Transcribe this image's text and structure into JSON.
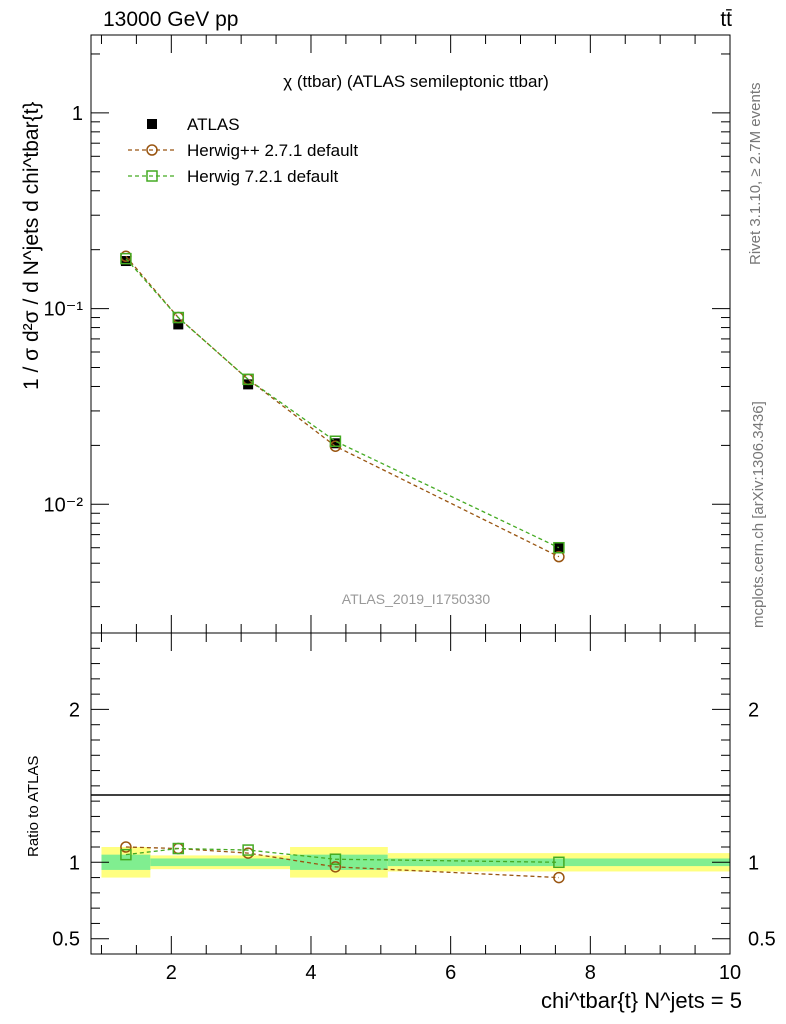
{
  "header": {
    "energy_label": "13000 GeV pp",
    "process_label": "tt̄"
  },
  "side_labels": {
    "rivet": "Rivet 3.1.10, ≥ 2.7M events",
    "mcplots": "mcplots.cern.ch [arXiv:1306.3436]"
  },
  "chart_data": [
    {
      "type": "line",
      "title": "χ (ttbar) (ATLAS semileptonic ttbar)",
      "watermark": "ATLAS_2019_I1750330",
      "ylabel": "1 / σ d²σ / d N^jets d chi^tbar{t}",
      "yscale": "log",
      "ylim": [
        0.0022,
        2.5
      ],
      "yticks": [
        {
          "value": 1,
          "label": "1"
        },
        {
          "value": 0.1,
          "label": "10⁻¹"
        },
        {
          "value": 0.01,
          "label": "10⁻²"
        }
      ],
      "xlim": [
        0.85,
        10
      ],
      "legend_position": "top-left",
      "series": [
        {
          "name": "ATLAS",
          "marker": "filled-square",
          "color": "#000000",
          "x": [
            1.35,
            2.1,
            3.1,
            4.35,
            7.55
          ],
          "y": [
            0.175,
            0.083,
            0.041,
            0.0205,
            0.006
          ]
        },
        {
          "name": "Herwig++ 2.7.1 default",
          "marker": "open-circle",
          "color": "#995511",
          "x": [
            1.35,
            2.1,
            3.1,
            4.35,
            7.55
          ],
          "y": [
            0.185,
            0.09,
            0.0435,
            0.0198,
            0.0054
          ]
        },
        {
          "name": "Herwig 7.2.1 default",
          "marker": "open-square",
          "color": "#44aa22",
          "x": [
            1.35,
            2.1,
            3.1,
            4.35,
            7.55
          ],
          "y": [
            0.18,
            0.09,
            0.0435,
            0.021,
            0.006
          ]
        }
      ]
    },
    {
      "type": "line",
      "ylabel": "Ratio to ATLAS",
      "xlabel": "chi^tbar{t} N^jets = 5",
      "ylim": [
        0.4,
        2.5
      ],
      "yticks": [
        {
          "value": 2,
          "label": "2"
        },
        {
          "value": 1,
          "label": "1"
        },
        {
          "value": 0.5,
          "label": "0.5"
        }
      ],
      "xlim": [
        0.85,
        10
      ],
      "xticks": [
        {
          "value": 2,
          "label": "2"
        },
        {
          "value": 4,
          "label": "4"
        },
        {
          "value": 6,
          "label": "6"
        },
        {
          "value": 8,
          "label": "8"
        },
        {
          "value": 10,
          "label": "10"
        }
      ],
      "uncertainty_bands": [
        {
          "x_from": 1.0,
          "x_to": 1.7,
          "stat": 0.05,
          "total": 0.1
        },
        {
          "x_from": 1.7,
          "x_to": 3.7,
          "stat": 0.025,
          "total": 0.045
        },
        {
          "x_from": 3.7,
          "x_to": 5.1,
          "stat": 0.05,
          "total": 0.1
        },
        {
          "x_from": 5.1,
          "x_to": 10.0,
          "stat": 0.025,
          "total": 0.06
        }
      ],
      "colors": {
        "stat_band": "#80ee90",
        "total_band": "#ffff80"
      },
      "series": [
        {
          "name": "Herwig++ 2.7.1 default",
          "marker": "open-circle",
          "color": "#995511",
          "x": [
            1.35,
            2.1,
            3.1,
            4.35,
            7.55
          ],
          "y": [
            1.1,
            1.09,
            1.06,
            0.97,
            0.9
          ]
        },
        {
          "name": "Herwig 7.2.1 default",
          "marker": "open-square",
          "color": "#44aa22",
          "x": [
            1.35,
            2.1,
            3.1,
            4.35,
            7.55
          ],
          "y": [
            1.05,
            1.09,
            1.08,
            1.02,
            1.0
          ]
        }
      ]
    }
  ]
}
